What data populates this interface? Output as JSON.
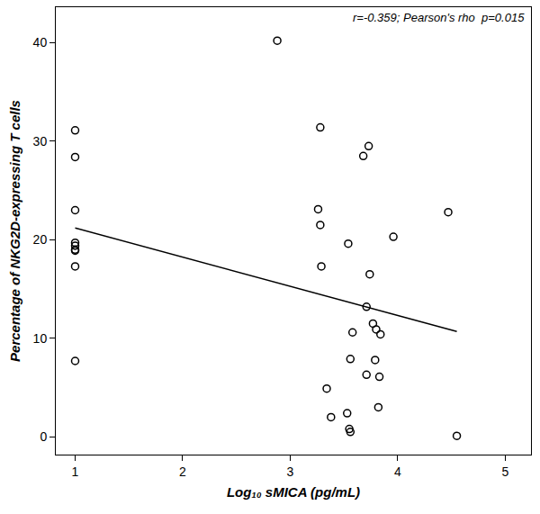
{
  "chart_data": {
    "type": "scatter",
    "annotation": "r=-0.359; Pearson's rho  p=0.015",
    "x_label": "Log₁₀ sMICA (pg/mL)",
    "y_label": "Percentage of NKG2D-expressing T cells",
    "x": [
      1,
      1,
      1,
      1,
      1,
      1,
      1,
      1,
      1,
      2.88,
      3.28,
      3.73,
      3.68,
      4.47,
      3.26,
      3.28,
      3.96,
      3.54,
      3.29,
      3.74,
      3.71,
      3.77,
      3.8,
      3.58,
      3.84,
      3.56,
      3.79,
      3.71,
      3.83,
      3.34,
      3.82,
      3.53,
      3.38,
      3.55,
      3.56,
      4.55
    ],
    "values": [
      31.1,
      28.4,
      23.0,
      19.7,
      19.4,
      19.0,
      18.9,
      17.3,
      7.7,
      40.2,
      31.4,
      29.5,
      28.5,
      22.8,
      23.1,
      21.5,
      20.3,
      19.6,
      17.3,
      16.5,
      13.2,
      11.5,
      10.9,
      10.6,
      10.4,
      7.9,
      7.8,
      6.3,
      6.1,
      4.9,
      3.0,
      2.4,
      2.0,
      0.8,
      0.5,
      0.1
    ],
    "marker": "circle-open",
    "color": "#000000",
    "fit": {
      "x": [
        1,
        4.55
      ],
      "values": [
        21.2,
        10.7
      ],
      "color": "#000000",
      "line_style": "solid"
    },
    "xlim": [
      0.82,
      5.24
    ],
    "ylim": [
      -1.8,
      43.6
    ],
    "xticks": [
      1,
      2,
      3,
      4,
      5
    ],
    "yticks": [
      0,
      10,
      20,
      30,
      40
    ],
    "grid": false
  }
}
